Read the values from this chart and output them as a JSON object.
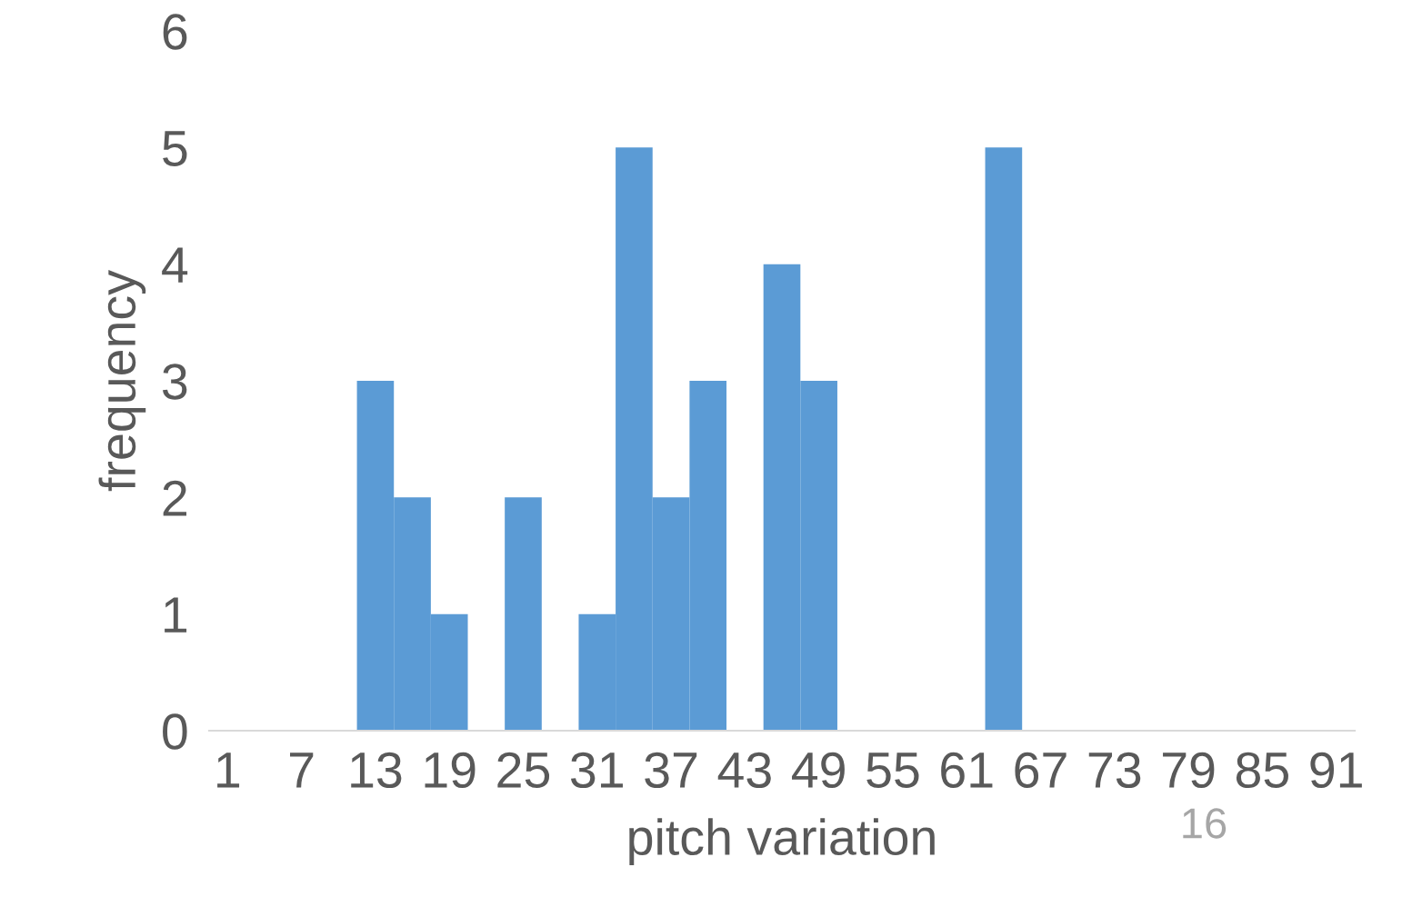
{
  "chart_data": {
    "type": "bar",
    "xlabel": "pitch variation",
    "ylabel": "frequency",
    "categories": [
      "1",
      null,
      "7",
      null,
      "13",
      null,
      "19",
      null,
      "25",
      null,
      "31",
      null,
      "37",
      null,
      "43",
      null,
      "49",
      null,
      "55",
      null,
      "61",
      null,
      "67",
      null,
      "73",
      null,
      "79",
      null,
      "85",
      null,
      "91"
    ],
    "values": [
      0,
      0,
      0,
      0,
      3,
      2,
      1,
      0,
      2,
      0,
      1,
      5,
      2,
      3,
      0,
      4,
      3,
      0,
      0,
      0,
      0,
      5,
      0,
      0,
      0,
      0,
      0,
      0,
      0,
      0,
      0
    ],
    "color": "#5b9bd5",
    "ylim": [
      0,
      6
    ],
    "yticks": [
      0,
      1,
      2,
      3,
      4,
      5,
      6
    ],
    "grid": false,
    "annotations": [
      "16"
    ]
  }
}
